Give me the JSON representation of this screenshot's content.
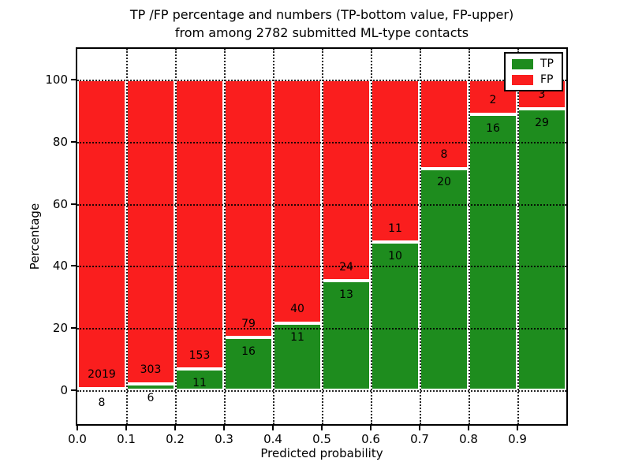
{
  "title": {
    "line1": "TP /FP percentage and numbers (TP-bottom value, FP-upper)",
    "line2": "from among 2782 submitted ML-type contacts"
  },
  "chart_data": {
    "type": "bar",
    "stacked": true,
    "title": "TP /FP percentage and numbers (TP-bottom value, FP-upper) from among 2782 submitted ML-type contacts",
    "xlabel": "Predicted probability",
    "ylabel": "Percentage",
    "xlim": [
      0.0,
      1.0
    ],
    "ylim": [
      -11,
      110
    ],
    "grid": true,
    "bin_width": 0.1,
    "categories": [
      "0.0-0.1",
      "0.1-0.2",
      "0.2-0.3",
      "0.3-0.4",
      "0.4-0.5",
      "0.5-0.6",
      "0.6-0.7",
      "0.7-0.8",
      "0.8-0.9",
      "0.9-1.0"
    ],
    "series": [
      {
        "name": "TP",
        "color": "#1e8c1e",
        "counts": [
          8,
          6,
          11,
          16,
          11,
          13,
          10,
          20,
          16,
          29
        ],
        "pct": [
          0.39,
          1.94,
          6.71,
          16.84,
          21.57,
          35.14,
          47.62,
          71.43,
          88.89,
          90.63
        ]
      },
      {
        "name": "FP",
        "color": "#fa1e1e",
        "counts": [
          2019,
          303,
          153,
          79,
          40,
          24,
          11,
          8,
          2,
          3
        ],
        "pct": [
          99.61,
          98.06,
          93.29,
          83.16,
          78.43,
          64.86,
          52.38,
          28.57,
          11.11,
          9.37
        ]
      }
    ],
    "x_ticks": [
      {
        "value": 0.0,
        "label": "0.0"
      },
      {
        "value": 0.1,
        "label": "0.1"
      },
      {
        "value": 0.2,
        "label": "0.2"
      },
      {
        "value": 0.3,
        "label": "0.3"
      },
      {
        "value": 0.4,
        "label": "0.4"
      },
      {
        "value": 0.5,
        "label": "0.5"
      },
      {
        "value": 0.6,
        "label": "0.6"
      },
      {
        "value": 0.7,
        "label": "0.7"
      },
      {
        "value": 0.8,
        "label": "0.8"
      },
      {
        "value": 0.9,
        "label": "0.9"
      }
    ],
    "y_ticks": [
      {
        "value": 0,
        "label": "0"
      },
      {
        "value": 20,
        "label": "20"
      },
      {
        "value": 40,
        "label": "40"
      },
      {
        "value": 60,
        "label": "60"
      },
      {
        "value": 80,
        "label": "80"
      },
      {
        "value": 100,
        "label": "100"
      }
    ],
    "legend": {
      "position": "upper right",
      "entries": [
        {
          "label": "TP",
          "color": "#1e8c1e"
        },
        {
          "label": "FP",
          "color": "#fa1e1e"
        }
      ]
    }
  }
}
